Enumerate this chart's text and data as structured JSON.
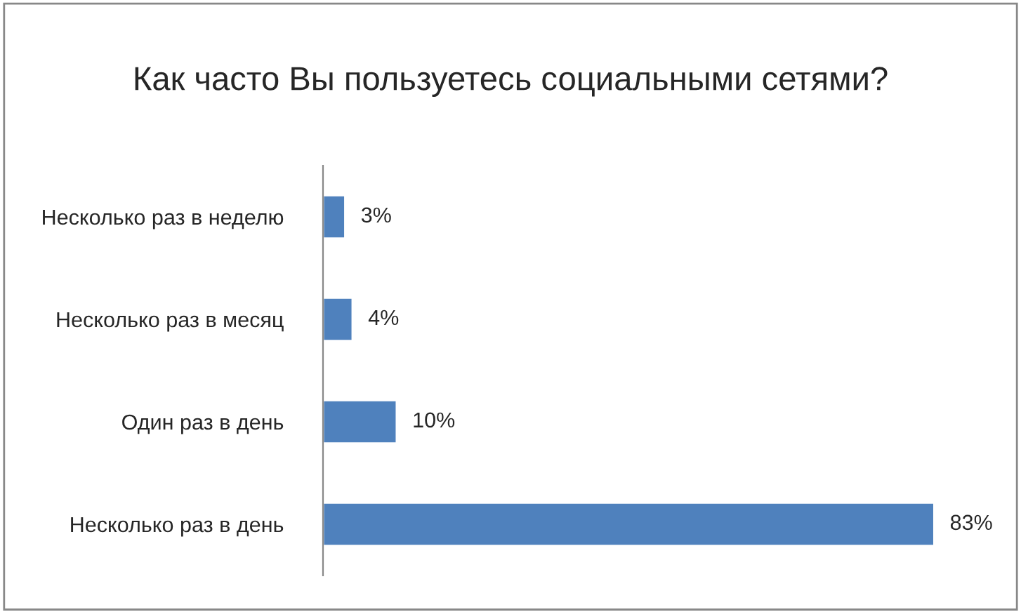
{
  "chart_data": {
    "type": "bar",
    "orientation": "horizontal",
    "title": "Как часто Вы пользуетесь социальными сетями?",
    "categories": [
      "Несколько раз в неделю",
      "Несколько раз в месяц",
      "Один раз в день",
      "Несколько раз в день"
    ],
    "values": [
      3,
      4,
      10,
      83
    ],
    "color": "#4f81bd",
    "value_labels": [
      "3%",
      "4%",
      "10%",
      "83%"
    ],
    "tick_labels": "y",
    "grid": false,
    "legend": false
  }
}
